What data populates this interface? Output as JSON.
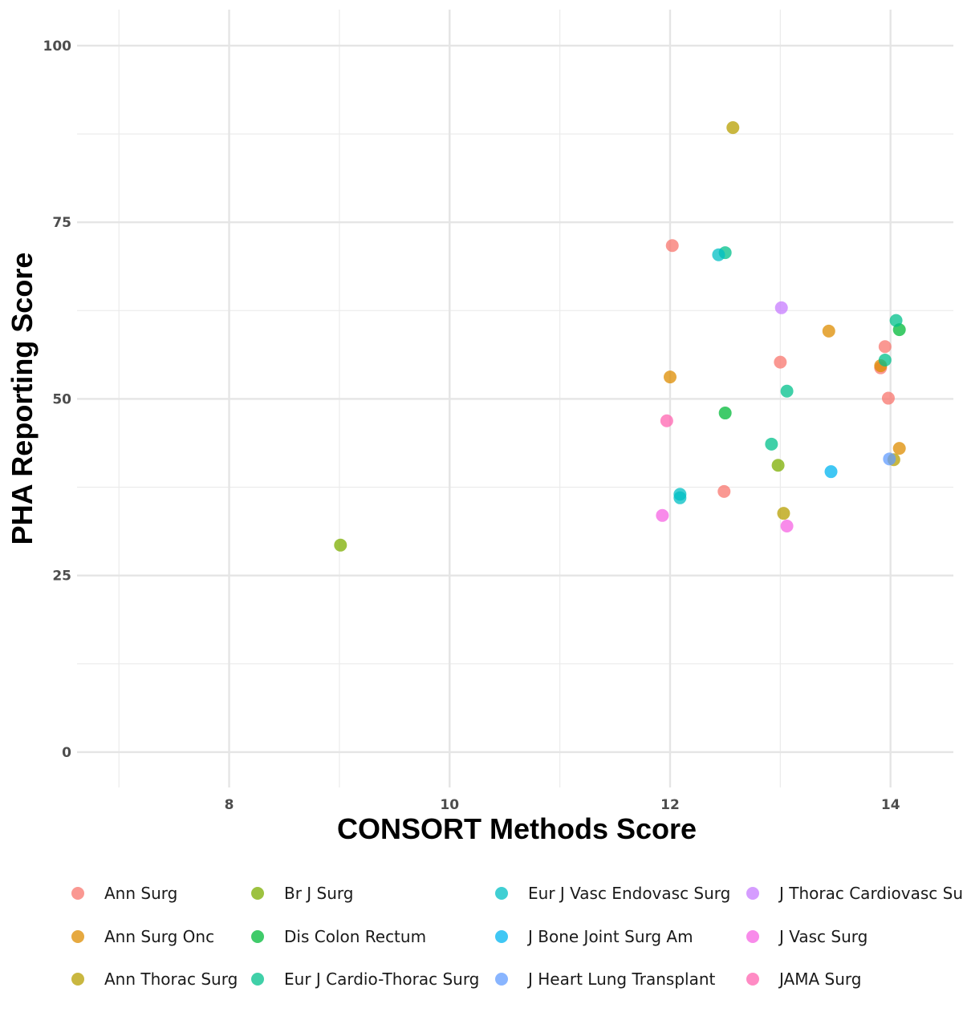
{
  "chart_data": {
    "type": "scatter",
    "xlabel": "CONSORT Methods Score",
    "ylabel": "PHA Reporting Score",
    "xlim": [
      6.62,
      14.57
    ],
    "ylim": [
      -5,
      105.1
    ],
    "x_ticks": [
      8,
      10,
      12,
      14
    ],
    "y_ticks": [
      0,
      25,
      50,
      75,
      100
    ],
    "grid": true,
    "legend_placement": "bottom",
    "series": [
      {
        "name": "Ann Surg",
        "color": "#F8766D",
        "points": [
          [
            12.02,
            71.7
          ],
          [
            13.91,
            54.4
          ],
          [
            13.95,
            57.4
          ],
          [
            13.0,
            55.2
          ],
          [
            13.98,
            50.1
          ],
          [
            12.49,
            36.9
          ]
        ]
      },
      {
        "name": "Ann Surg Onc",
        "color": "#DE8C00",
        "points": [
          [
            13.44,
            59.6
          ],
          [
            13.91,
            54.7
          ],
          [
            12.0,
            53.1
          ],
          [
            14.08,
            43.0
          ]
        ]
      },
      {
        "name": "Ann Thorac Surg",
        "color": "#B79F00",
        "points": [
          [
            12.57,
            88.4
          ],
          [
            14.03,
            41.4
          ],
          [
            13.03,
            33.8
          ]
        ]
      },
      {
        "name": "Br J Surg",
        "color": "#7CAE00",
        "points": [
          [
            12.98,
            40.6
          ],
          [
            9.01,
            29.3
          ]
        ]
      },
      {
        "name": "Dis Colon Rectum",
        "color": "#00BA38",
        "points": [
          [
            14.08,
            59.8
          ],
          [
            12.5,
            48.0
          ]
        ]
      },
      {
        "name": "Eur J Cardio-Thorac Surg",
        "color": "#00C08B",
        "points": [
          [
            12.5,
            70.7
          ],
          [
            14.05,
            61.1
          ],
          [
            13.95,
            55.5
          ],
          [
            13.06,
            51.1
          ],
          [
            12.92,
            43.6
          ]
        ]
      },
      {
        "name": "Eur J Vasc Endovasc Surg",
        "color": "#00BFC4",
        "points": [
          [
            12.44,
            70.4
          ],
          [
            12.09,
            36.5
          ],
          [
            12.09,
            36.0
          ]
        ]
      },
      {
        "name": "J Bone Joint Surg Am",
        "color": "#00B4F0",
        "points": [
          [
            13.46,
            39.7
          ]
        ]
      },
      {
        "name": "J Heart Lung Transplant",
        "color": "#619CFF",
        "points": [
          [
            13.99,
            41.5
          ]
        ]
      },
      {
        "name": "J Thorac Cardiovasc Surg",
        "color": "#C77CFF",
        "points": [
          [
            13.01,
            62.9
          ]
        ]
      },
      {
        "name": "J Vasc Surg",
        "color": "#F564E3",
        "points": [
          [
            11.93,
            33.5
          ],
          [
            13.06,
            32.0
          ]
        ]
      },
      {
        "name": "JAMA Surg",
        "color": "#FF64B0",
        "points": [
          [
            11.97,
            46.9
          ]
        ]
      }
    ]
  }
}
